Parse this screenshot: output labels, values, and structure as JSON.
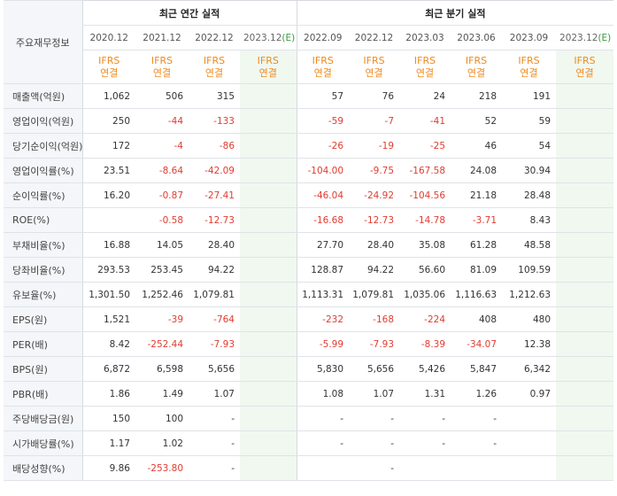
{
  "header": {
    "row_label_title": "주요재무정보",
    "annual_title": "최근 연간 실적",
    "quarter_title": "최근 분기 실적"
  },
  "annual_periods": [
    {
      "period": "2020.12",
      "std": "IFRS",
      "basis": "연결",
      "estimate": false
    },
    {
      "period": "2021.12",
      "std": "IFRS",
      "basis": "연결",
      "estimate": false
    },
    {
      "period": "2022.12",
      "std": "IFRS",
      "basis": "연결",
      "estimate": false
    },
    {
      "period": "2023.12",
      "est_mark": "(E)",
      "std": "IFRS",
      "basis": "연결",
      "estimate": true
    }
  ],
  "quarter_periods": [
    {
      "period": "2022.09",
      "std": "IFRS",
      "basis": "연결",
      "estimate": false
    },
    {
      "period": "2022.12",
      "std": "IFRS",
      "basis": "연결",
      "estimate": false
    },
    {
      "period": "2023.03",
      "std": "IFRS",
      "basis": "연결",
      "estimate": false
    },
    {
      "period": "2023.06",
      "std": "IFRS",
      "basis": "연결",
      "estimate": false
    },
    {
      "period": "2023.09",
      "std": "IFRS",
      "basis": "연결",
      "estimate": false
    },
    {
      "period": "2023.12",
      "est_mark": "(E)",
      "std": "IFRS",
      "basis": "연결",
      "estimate": true
    }
  ],
  "rows": [
    {
      "label": "매출액(억원)",
      "annual": [
        "1,062",
        "506",
        "315",
        ""
      ],
      "quarter": [
        "57",
        "76",
        "24",
        "218",
        "191",
        ""
      ]
    },
    {
      "label": "영업이익(억원)",
      "annual": [
        "250",
        "-44",
        "-133",
        ""
      ],
      "quarter": [
        "-59",
        "-7",
        "-41",
        "52",
        "59",
        ""
      ]
    },
    {
      "label": "당기순이익(억원)",
      "annual": [
        "172",
        "-4",
        "-86",
        ""
      ],
      "quarter": [
        "-26",
        "-19",
        "-25",
        "46",
        "54",
        ""
      ]
    },
    {
      "label": "영업이익률(%)",
      "annual": [
        "23.51",
        "-8.64",
        "-42.09",
        ""
      ],
      "quarter": [
        "-104.00",
        "-9.75",
        "-167.58",
        "24.08",
        "30.94",
        ""
      ]
    },
    {
      "label": "순이익률(%)",
      "annual": [
        "16.20",
        "-0.87",
        "-27.41",
        ""
      ],
      "quarter": [
        "-46.04",
        "-24.92",
        "-104.56",
        "21.18",
        "28.48",
        ""
      ]
    },
    {
      "label": "ROE(%)",
      "annual": [
        "",
        "-0.58",
        "-12.73",
        ""
      ],
      "quarter": [
        "-16.68",
        "-12.73",
        "-14.78",
        "-3.71",
        "8.43",
        ""
      ]
    },
    {
      "label": "부채비율(%)",
      "annual": [
        "16.88",
        "14.05",
        "28.40",
        ""
      ],
      "quarter": [
        "27.70",
        "28.40",
        "35.08",
        "61.28",
        "48.58",
        ""
      ]
    },
    {
      "label": "당좌비율(%)",
      "annual": [
        "293.53",
        "253.45",
        "94.22",
        ""
      ],
      "quarter": [
        "128.87",
        "94.22",
        "56.60",
        "81.09",
        "109.59",
        ""
      ]
    },
    {
      "label": "유보율(%)",
      "annual": [
        "1,301.50",
        "1,252.46",
        "1,079.81",
        ""
      ],
      "quarter": [
        "1,113.31",
        "1,079.81",
        "1,035.06",
        "1,116.63",
        "1,212.63",
        ""
      ]
    },
    {
      "label": "EPS(원)",
      "annual": [
        "1,521",
        "-39",
        "-764",
        ""
      ],
      "quarter": [
        "-232",
        "-168",
        "-224",
        "408",
        "480",
        ""
      ]
    },
    {
      "label": "PER(배)",
      "annual": [
        "8.42",
        "-252.44",
        "-7.93",
        ""
      ],
      "quarter": [
        "-5.99",
        "-7.93",
        "-8.39",
        "-34.07",
        "12.38",
        ""
      ]
    },
    {
      "label": "BPS(원)",
      "annual": [
        "6,872",
        "6,598",
        "5,656",
        ""
      ],
      "quarter": [
        "5,830",
        "5,656",
        "5,426",
        "5,847",
        "6,342",
        ""
      ]
    },
    {
      "label": "PBR(배)",
      "annual": [
        "1.86",
        "1.49",
        "1.07",
        ""
      ],
      "quarter": [
        "1.08",
        "1.07",
        "1.31",
        "1.26",
        "0.97",
        ""
      ]
    },
    {
      "label": "주당배당금(원)",
      "annual": [
        "150",
        "100",
        "-",
        ""
      ],
      "quarter": [
        "-",
        "-",
        "-",
        "-",
        "",
        ""
      ]
    },
    {
      "label": "시가배당률(%)",
      "annual": [
        "1.17",
        "1.02",
        "-",
        ""
      ],
      "quarter": [
        "-",
        "-",
        "-",
        "-",
        "",
        ""
      ]
    },
    {
      "label": "배당성향(%)",
      "annual": [
        "9.86",
        "-253.80",
        "-",
        ""
      ],
      "quarter": [
        "",
        "-",
        "",
        "",
        "",
        ""
      ]
    }
  ],
  "colors": {
    "negative": "#e03c31",
    "ifrs_orange": "#ef8a1d",
    "estimate_bg": "#f0f8f0",
    "label_bg": "#f4f6f9"
  }
}
